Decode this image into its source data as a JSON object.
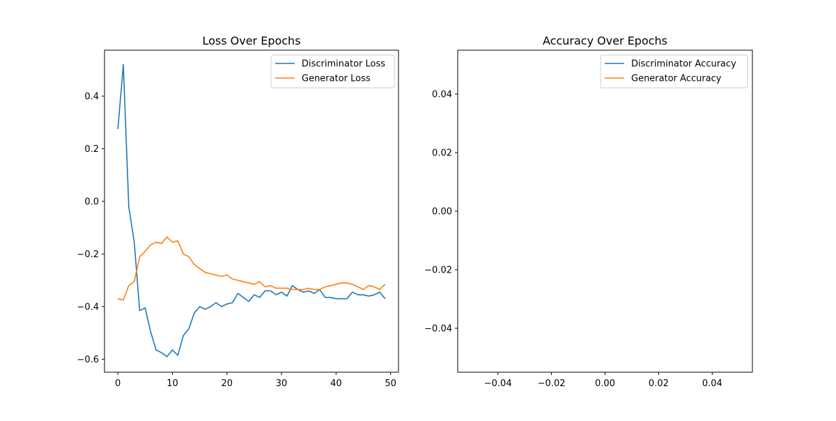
{
  "colors": {
    "discriminator": "#1f77b4",
    "generator": "#ff7f0e"
  },
  "chart_data": [
    {
      "type": "line",
      "title": "Loss Over Epochs",
      "xlabel": "",
      "ylabel": "",
      "xlim": [
        -2.45,
        51.45
      ],
      "ylim": [
        -0.6494,
        0.5749
      ],
      "xticks": [
        0,
        10,
        20,
        30,
        40,
        50
      ],
      "xtick_labels": [
        "0",
        "10",
        "20",
        "30",
        "40",
        "50"
      ],
      "yticks": [
        -0.6,
        -0.4,
        -0.2,
        0.0,
        0.2,
        0.4
      ],
      "ytick_labels": [
        "−0.6",
        "−0.4",
        "−0.2",
        "0.0",
        "0.2",
        "0.4"
      ],
      "legend_position": "top-right",
      "grid": false,
      "series": [
        {
          "name": "Discriminator Loss",
          "color": "#1f77b4",
          "x": [
            0,
            1,
            2,
            3,
            4,
            5,
            6,
            7,
            8,
            9,
            10,
            11,
            12,
            13,
            14,
            15,
            16,
            17,
            18,
            19,
            20,
            21,
            22,
            23,
            24,
            25,
            26,
            27,
            28,
            29,
            30,
            31,
            32,
            33,
            34,
            35,
            36,
            37,
            38,
            39,
            40,
            41,
            42,
            43,
            44,
            45,
            46,
            47,
            48,
            49
          ],
          "y": [
            0.275,
            0.52,
            -0.02,
            -0.155,
            -0.415,
            -0.405,
            -0.495,
            -0.565,
            -0.575,
            -0.59,
            -0.565,
            -0.585,
            -0.51,
            -0.485,
            -0.425,
            -0.4,
            -0.41,
            -0.4,
            -0.385,
            -0.4,
            -0.39,
            -0.385,
            -0.35,
            -0.365,
            -0.38,
            -0.355,
            -0.365,
            -0.34,
            -0.34,
            -0.355,
            -0.345,
            -0.36,
            -0.32,
            -0.335,
            -0.345,
            -0.34,
            -0.35,
            -0.335,
            -0.365,
            -0.365,
            -0.37,
            -0.37,
            -0.37,
            -0.345,
            -0.355,
            -0.355,
            -0.36,
            -0.355,
            -0.345,
            -0.37
          ]
        },
        {
          "name": "Generator Loss",
          "color": "#ff7f0e",
          "x": [
            0,
            1,
            2,
            3,
            4,
            5,
            6,
            7,
            8,
            9,
            10,
            11,
            12,
            13,
            14,
            15,
            16,
            17,
            18,
            19,
            20,
            21,
            22,
            23,
            24,
            25,
            26,
            27,
            28,
            29,
            30,
            31,
            32,
            33,
            34,
            35,
            36,
            37,
            38,
            39,
            40,
            41,
            42,
            43,
            44,
            45,
            46,
            47,
            48,
            49
          ],
          "y": [
            -0.37,
            -0.375,
            -0.32,
            -0.305,
            -0.21,
            -0.19,
            -0.165,
            -0.155,
            -0.16,
            -0.135,
            -0.155,
            -0.15,
            -0.2,
            -0.21,
            -0.24,
            -0.255,
            -0.27,
            -0.275,
            -0.28,
            -0.285,
            -0.28,
            -0.295,
            -0.3,
            -0.305,
            -0.31,
            -0.315,
            -0.305,
            -0.325,
            -0.32,
            -0.33,
            -0.33,
            -0.33,
            -0.335,
            -0.335,
            -0.335,
            -0.33,
            -0.335,
            -0.335,
            -0.325,
            -0.32,
            -0.315,
            -0.31,
            -0.31,
            -0.315,
            -0.325,
            -0.335,
            -0.32,
            -0.325,
            -0.335,
            -0.315
          ]
        }
      ]
    },
    {
      "type": "line",
      "title": "Accuracy Over Epochs",
      "xlabel": "",
      "ylabel": "",
      "xlim": [
        -0.055,
        0.055
      ],
      "ylim": [
        -0.055,
        0.055
      ],
      "xticks": [
        -0.04,
        -0.02,
        0.0,
        0.02,
        0.04
      ],
      "xtick_labels": [
        "−0.04",
        "−0.02",
        "0.00",
        "0.02",
        "0.04"
      ],
      "yticks": [
        -0.04,
        -0.02,
        0.0,
        0.02,
        0.04
      ],
      "ytick_labels": [
        "−0.04",
        "−0.02",
        "0.00",
        "0.02",
        "0.04"
      ],
      "legend_position": "top-right",
      "grid": false,
      "series": [
        {
          "name": "Discriminator Accuracy",
          "color": "#1f77b4",
          "x": [],
          "y": []
        },
        {
          "name": "Generator Accuracy",
          "color": "#ff7f0e",
          "x": [],
          "y": []
        }
      ]
    }
  ]
}
